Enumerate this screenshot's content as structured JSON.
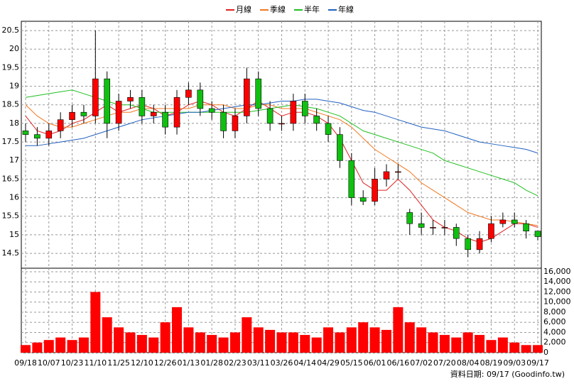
{
  "chart_data": {
    "type": "candlestick",
    "legend": [
      {
        "name": "月線",
        "color": "#e02020"
      },
      {
        "name": "季線",
        "color": "#f07820"
      },
      {
        "name": "半年",
        "color": "#20c020"
      },
      {
        "name": "年線",
        "color": "#2060c0"
      }
    ],
    "footer": "資料日期: 09/17 (Goodinfo.tw)",
    "xticks": [
      "09/18",
      "10/07",
      "10/23",
      "11/10",
      "11/25",
      "12/10",
      "12/26",
      "01/13",
      "01/28",
      "02/23",
      "03/11",
      "03/26",
      "04/14",
      "04/29",
      "05/15",
      "06/01",
      "06/16",
      "07/02",
      "07/20",
      "08/04",
      "08/19",
      "09/03",
      "09/17"
    ],
    "open": [
      17.8,
      17.7,
      17.6,
      17.8,
      18.1,
      18.3,
      18.2,
      19.2,
      18.0,
      18.6,
      18.7,
      18.2,
      18.3,
      17.9,
      18.7,
      18.9,
      18.4,
      18.3,
      17.8,
      18.2,
      19.2,
      18.4,
      18.0,
      18.0,
      18.6,
      18.2,
      18.0,
      17.7,
      17.0,
      16.0,
      15.9,
      16.5,
      16.7,
      15.6,
      15.3,
      15.2,
      15.2,
      15.2,
      14.9,
      14.6,
      14.9,
      15.3,
      15.4,
      15.3,
      15.1
    ],
    "high": [
      18.0,
      17.9,
      18.0,
      18.3,
      18.5,
      18.5,
      20.5,
      19.4,
      18.8,
      18.9,
      18.9,
      18.5,
      18.5,
      18.9,
      19.1,
      19.1,
      18.6,
      18.5,
      18.4,
      19.5,
      19.4,
      18.6,
      18.2,
      18.8,
      18.8,
      18.4,
      18.2,
      17.9,
      17.2,
      16.2,
      16.8,
      16.9,
      16.9,
      15.7,
      15.6,
      15.4,
      15.4,
      15.3,
      15.0,
      15.1,
      15.5,
      15.6,
      15.6,
      15.4,
      15.1
    ],
    "low": [
      17.5,
      17.4,
      17.4,
      17.6,
      17.9,
      18.0,
      18.0,
      17.6,
      17.8,
      18.4,
      18.0,
      18.0,
      17.7,
      17.7,
      18.5,
      18.2,
      18.1,
      17.6,
      17.6,
      18.0,
      18.2,
      17.8,
      17.8,
      17.8,
      18.0,
      17.8,
      17.5,
      16.8,
      15.8,
      15.8,
      15.8,
      16.3,
      16.5,
      15.0,
      15.0,
      15.0,
      15.0,
      14.7,
      14.4,
      14.5,
      14.8,
      15.2,
      15.2,
      14.9,
      14.85
    ],
    "close": [
      17.7,
      17.6,
      17.8,
      18.1,
      18.3,
      18.2,
      19.2,
      18.0,
      18.6,
      18.7,
      18.2,
      18.3,
      17.9,
      18.7,
      18.9,
      18.4,
      18.3,
      17.8,
      18.2,
      19.2,
      18.4,
      18.0,
      18.0,
      18.6,
      18.2,
      18.0,
      17.7,
      17.0,
      16.0,
      15.9,
      16.5,
      16.7,
      16.7,
      15.3,
      15.2,
      15.2,
      15.2,
      14.9,
      14.6,
      14.9,
      15.3,
      15.4,
      15.3,
      15.1,
      14.95
    ],
    "ma": [
      [
        18.2,
        17.8,
        17.7,
        17.8,
        18.0,
        18.1,
        18.3,
        18.5,
        18.3,
        18.4,
        18.5,
        18.4,
        18.2,
        18.3,
        18.5,
        18.6,
        18.5,
        18.3,
        18.2,
        18.4,
        18.6,
        18.4,
        18.2,
        18.3,
        18.3,
        18.2,
        18.0,
        17.6,
        17.0,
        16.4,
        16.2,
        16.2,
        16.5,
        16.2,
        15.8,
        15.4,
        15.2,
        15.1,
        14.9,
        14.8,
        14.9,
        15.1,
        15.3,
        15.3,
        15.2
      ],
      [
        18.5,
        18.2,
        18.0,
        17.9,
        17.9,
        18.0,
        18.1,
        18.2,
        18.3,
        18.3,
        18.4,
        18.4,
        18.4,
        18.4,
        18.4,
        18.5,
        18.5,
        18.5,
        18.4,
        18.4,
        18.5,
        18.5,
        18.4,
        18.4,
        18.4,
        18.3,
        18.2,
        18.1,
        17.9,
        17.6,
        17.3,
        17.1,
        16.9,
        16.7,
        16.4,
        16.2,
        16.0,
        15.8,
        15.6,
        15.5,
        15.4,
        15.4,
        15.35,
        15.3,
        15.25
      ],
      [
        18.7,
        18.75,
        18.8,
        18.85,
        18.9,
        18.8,
        18.7,
        18.6,
        18.5,
        18.5,
        18.4,
        18.3,
        18.3,
        18.3,
        18.3,
        18.3,
        18.3,
        18.3,
        18.3,
        18.3,
        18.35,
        18.4,
        18.45,
        18.5,
        18.45,
        18.4,
        18.3,
        18.2,
        18.0,
        17.8,
        17.7,
        17.6,
        17.5,
        17.4,
        17.3,
        17.2,
        17.0,
        16.9,
        16.8,
        16.7,
        16.6,
        16.5,
        16.4,
        16.2,
        16.05
      ],
      [
        17.4,
        17.4,
        17.45,
        17.5,
        17.55,
        17.6,
        17.7,
        17.8,
        17.9,
        18.0,
        18.1,
        18.15,
        18.2,
        18.25,
        18.3,
        18.3,
        18.35,
        18.4,
        18.45,
        18.5,
        18.5,
        18.55,
        18.6,
        18.6,
        18.65,
        18.65,
        18.6,
        18.55,
        18.45,
        18.35,
        18.3,
        18.2,
        18.1,
        18.0,
        17.9,
        17.85,
        17.8,
        17.7,
        17.6,
        17.5,
        17.45,
        17.4,
        17.35,
        17.3,
        17.2
      ]
    ],
    "volume": [
      1500,
      2000,
      2500,
      3000,
      2500,
      3000,
      12000,
      7000,
      5000,
      4000,
      3500,
      3000,
      6000,
      9000,
      5000,
      4000,
      3500,
      3000,
      4000,
      7000,
      5000,
      4500,
      4000,
      4000,
      3500,
      3000,
      5000,
      4000,
      5000,
      6000,
      5000,
      4500,
      9000,
      6000,
      5000,
      4000,
      3500,
      3000,
      4000,
      3500,
      2500,
      3000,
      2000,
      1500,
      1500
    ],
    "up_color": "#ff0000",
    "down_color": "#10c010",
    "volume_color": "#ff0000",
    "ylim": [
      14.1,
      20.75
    ],
    "yticks": [
      14.5,
      15,
      15.5,
      16,
      16.5,
      17,
      17.5,
      18,
      18.5,
      19,
      19.5,
      20,
      20.5
    ],
    "y2lim": [
      0,
      16700
    ],
    "y2ticks": [
      0,
      {
        "value": 2000,
        "label": "2,000"
      },
      {
        "value": 4000,
        "label": "4,000"
      },
      {
        "value": 6000,
        "label": "6,000"
      },
      {
        "value": 8000,
        "label": "8,000"
      },
      {
        "value": 10000,
        "label": "10,000"
      },
      {
        "value": 12000,
        "label": "12,000"
      },
      {
        "value": 14000,
        "label": "14,000"
      },
      {
        "value": 16000,
        "label": "16,000"
      }
    ],
    "grid": true
  }
}
